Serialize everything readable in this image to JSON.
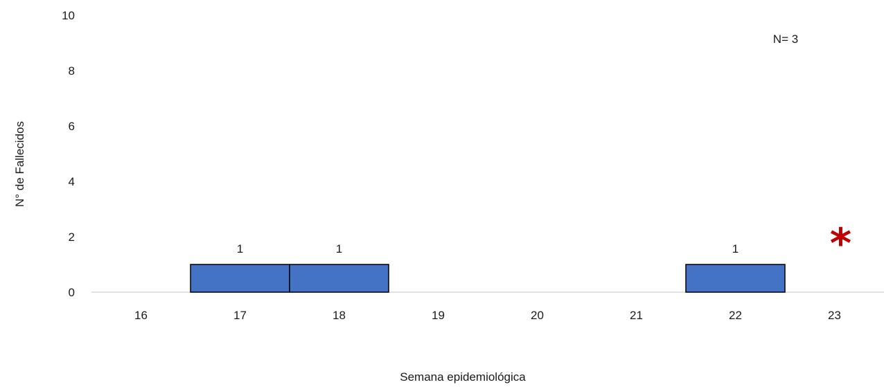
{
  "chart_data": {
    "type": "bar",
    "categories": [
      "16",
      "17",
      "18",
      "19",
      "20",
      "21",
      "22",
      "23"
    ],
    "values": [
      0,
      1,
      1,
      0,
      0,
      0,
      1,
      0
    ],
    "data_labels": [
      "",
      "1",
      "1",
      "",
      "",
      "",
      "1",
      ""
    ],
    "xlabel": "Semana epidemiológica",
    "ylabel": "N° de Fallecidos",
    "ylim": [
      0,
      10
    ],
    "yticks": [
      "0",
      "2",
      "4",
      "6",
      "8",
      "10"
    ],
    "grid": false,
    "annotation": "N= 3",
    "marker_symbol": "*",
    "marker_category": "23",
    "colors": {
      "bar": "#4472c4",
      "marker": "#c00000",
      "axis": "#d9d9d9"
    }
  }
}
